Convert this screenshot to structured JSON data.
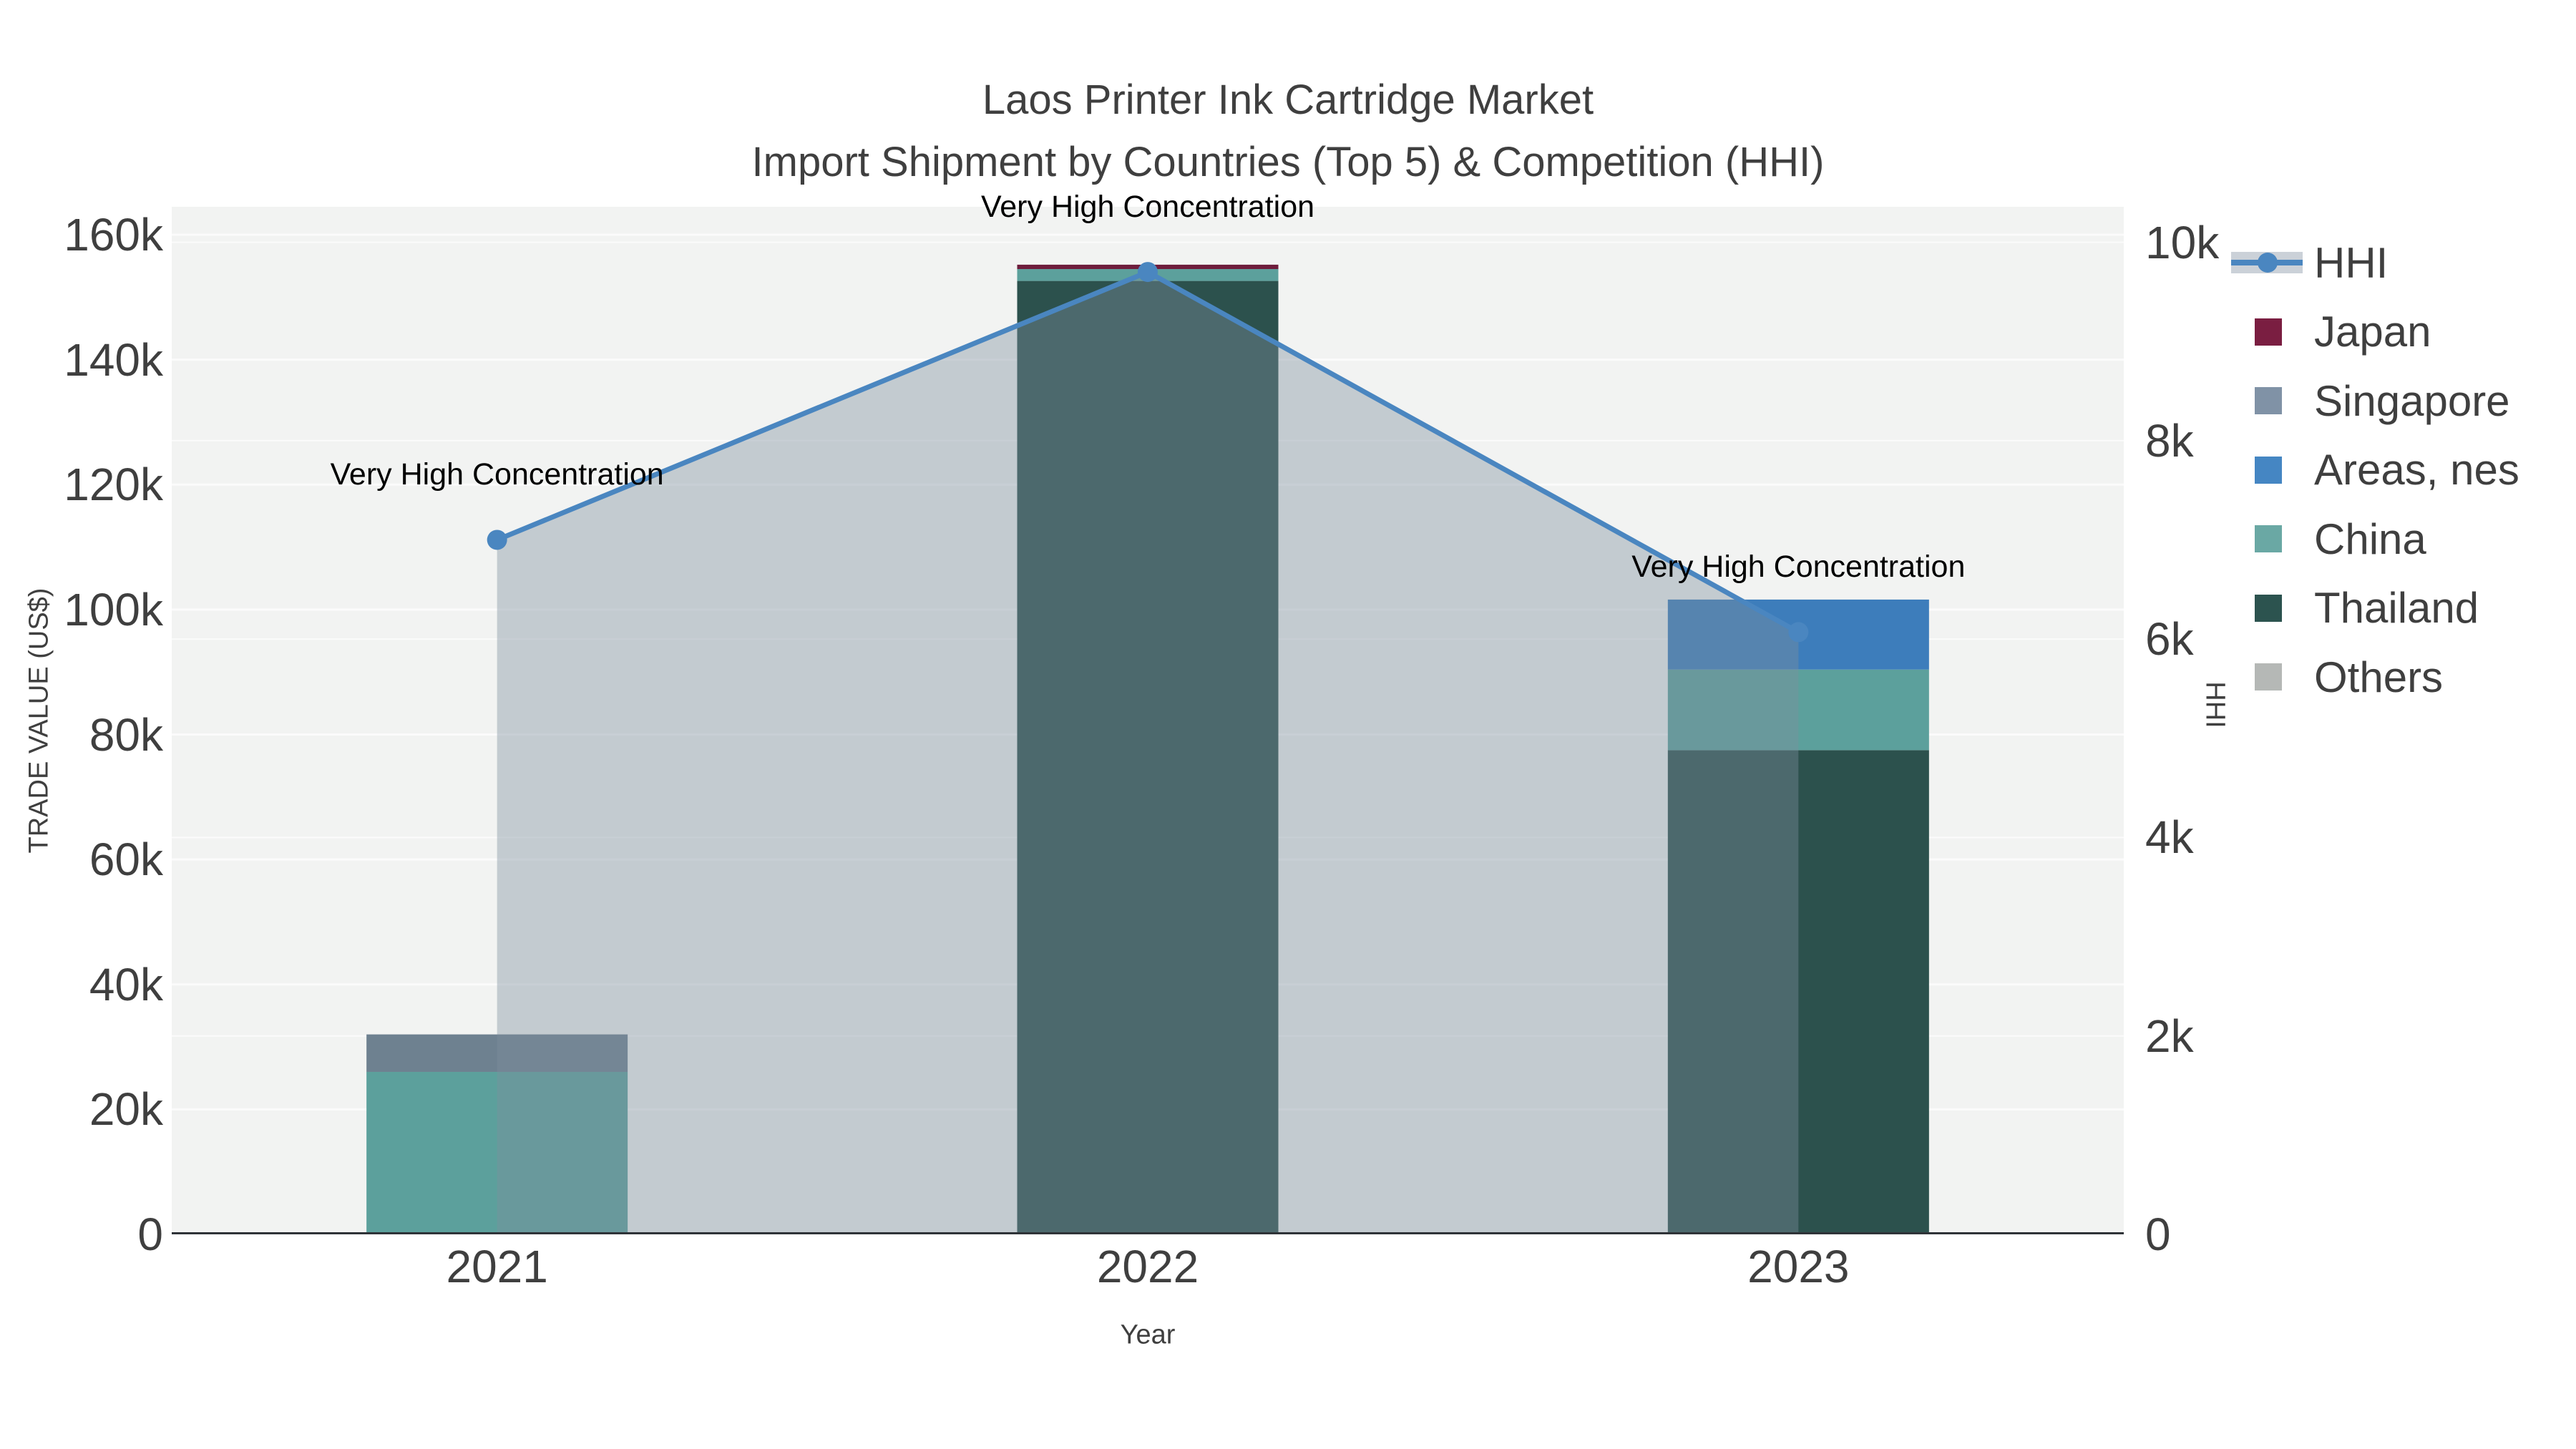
{
  "title": {
    "line1": "Laos Printer Ink Cartridge Market",
    "line2": "Import Shipment by Countries (Top 5) & Competition (HHI)"
  },
  "colors": {
    "background": "#ffffff",
    "plot_background": "#f2f3f2",
    "gridline": "#fbfbfb",
    "axis_line": "#2f3338",
    "text": "#3f3f3f",
    "annotation_text": "#000000",
    "hhi_line": "#4a86c0",
    "hhi_area_fill": "rgba(124,143,157,0.40)",
    "legend_band": "#cbd1d8"
  },
  "chart_data": {
    "type": "bar+line",
    "title_lines": [
      "Laos Printer Ink Cartridge Market",
      "Import Shipment by Countries (Top 5) & Competition (HHI)"
    ],
    "categories": [
      "2021",
      "2022",
      "2023"
    ],
    "bar_unit": "US$",
    "stack_order": [
      "Thailand",
      "China",
      "Singapore",
      "Areas, nes",
      "Japan",
      "Others"
    ],
    "legend_order": [
      "HHI",
      "Japan",
      "Singapore",
      "Areas, nes",
      "China",
      "Thailand",
      "Others"
    ],
    "series": [
      {
        "name": "HHI",
        "type": "line",
        "axis": "y2",
        "color": "#4a86c0",
        "fill": "rgba(124,143,157,0.40)",
        "values": [
          7000,
          9700,
          6070
        ]
      },
      {
        "name": "Japan",
        "type": "bar",
        "legend_color": "#7a1e41",
        "bar_color": "#6e1d3c",
        "values": [
          0,
          700,
          0
        ]
      },
      {
        "name": "Singapore",
        "type": "bar",
        "legend_color": "#8092a6",
        "bar_color": "#6e8190",
        "values": [
          6000,
          0,
          0
        ]
      },
      {
        "name": "Areas, nes",
        "type": "bar",
        "legend_color": "#4586c3",
        "bar_color": "#3d7dbb",
        "values": [
          0,
          0,
          11200
        ]
      },
      {
        "name": "China",
        "type": "bar",
        "legend_color": "#6aa8a4",
        "bar_color": "#5ca09c",
        "values": [
          26000,
          1900,
          12900
        ]
      },
      {
        "name": "Thailand",
        "type": "bar",
        "legend_color": "#2c534f",
        "bar_color": "#2c514d",
        "values": [
          0,
          152600,
          77500
        ]
      },
      {
        "name": "Others",
        "type": "bar",
        "legend_color": "#b5b8b6",
        "bar_color": "#b5b8b6",
        "values": [
          0,
          0,
          0
        ]
      }
    ],
    "annotations": [
      {
        "text": "Very High Concentration",
        "category": "2021"
      },
      {
        "text": "Very High Concentration",
        "category": "2022"
      },
      {
        "text": "Very High Concentration",
        "category": "2023"
      }
    ],
    "x": {
      "title": "Year"
    },
    "y1": {
      "title": "TRADE VALUE (US$)",
      "min": 0,
      "max": 160000,
      "ticks": [
        {
          "value": 0,
          "label": "0"
        },
        {
          "value": 20000,
          "label": "20k"
        },
        {
          "value": 40000,
          "label": "40k"
        },
        {
          "value": 60000,
          "label": "60k"
        },
        {
          "value": 80000,
          "label": "80k"
        },
        {
          "value": 100000,
          "label": "100k"
        },
        {
          "value": 120000,
          "label": "120k"
        },
        {
          "value": 140000,
          "label": "140k"
        },
        {
          "value": 160000,
          "label": "160k"
        }
      ]
    },
    "y2": {
      "title": "HHI",
      "min": 0,
      "max": 10000,
      "ticks": [
        {
          "value": 0,
          "label": "0"
        },
        {
          "value": 2000,
          "label": "2k"
        },
        {
          "value": 4000,
          "label": "4k"
        },
        {
          "value": 6000,
          "label": "6k"
        },
        {
          "value": 8000,
          "label": "8k"
        },
        {
          "value": 10000,
          "label": "10k"
        }
      ]
    },
    "legend_position": "right",
    "grid": true
  }
}
